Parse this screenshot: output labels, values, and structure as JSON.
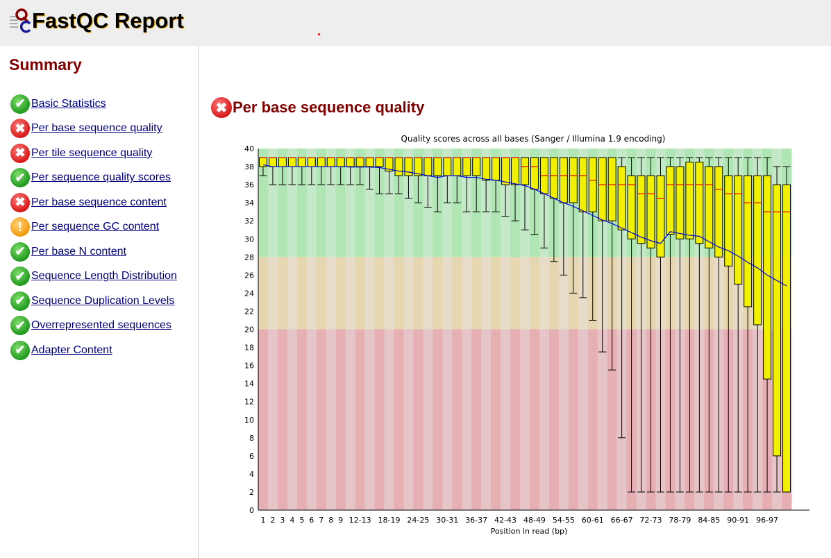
{
  "header": {
    "title": "FastQC Report",
    "logo_text": "QC"
  },
  "sidebar": {
    "title": "Summary",
    "items": [
      {
        "label": "Basic Statistics",
        "status": "pass"
      },
      {
        "label": "Per base sequence quality",
        "status": "fail"
      },
      {
        "label": "Per tile sequence quality",
        "status": "fail"
      },
      {
        "label": "Per sequence quality scores",
        "status": "pass"
      },
      {
        "label": "Per base sequence content",
        "status": "fail"
      },
      {
        "label": "Per sequence GC content",
        "status": "warn"
      },
      {
        "label": "Per base N content",
        "status": "pass"
      },
      {
        "label": "Sequence Length Distribution",
        "status": "pass"
      },
      {
        "label": "Sequence Duplication Levels",
        "status": "pass"
      },
      {
        "label": "Overrepresented sequences",
        "status": "pass"
      },
      {
        "label": "Adapter Content",
        "status": "pass"
      }
    ]
  },
  "main": {
    "title": "Per base sequence quality",
    "status": "fail"
  },
  "colors": {
    "pass": "#1f9a1f",
    "fail": "#d81818",
    "warn": "#f29a0c",
    "box": "#f0f000",
    "median": "#e00000",
    "mean": "#0000e0"
  },
  "chart_data": {
    "type": "box",
    "title": "Quality scores across all bases (Sanger / Illumina 1.9 encoding)",
    "xlabel": "Position in read (bp)",
    "ylabel": "",
    "ylim": [
      0,
      40
    ],
    "yticks": [
      0,
      2,
      4,
      6,
      8,
      10,
      12,
      14,
      16,
      18,
      20,
      22,
      24,
      26,
      28,
      30,
      32,
      34,
      36,
      38,
      40
    ],
    "zones": [
      {
        "from": 28,
        "to": 40,
        "label": "good"
      },
      {
        "from": 20,
        "to": 28,
        "label": "reasonable"
      },
      {
        "from": 0,
        "to": 20,
        "label": "poor"
      }
    ],
    "categories": [
      "1",
      "2",
      "3",
      "4",
      "5",
      "6",
      "7",
      "8",
      "9",
      "10-11",
      "12-13",
      "14-15",
      "16-17",
      "18-19",
      "20-21",
      "22-23",
      "24-25",
      "26-27",
      "28-29",
      "30-31",
      "32-33",
      "34-35",
      "36-37",
      "38-39",
      "40-41",
      "42-43",
      "44-45",
      "46-47",
      "48-49",
      "50-51",
      "52-53",
      "54-55",
      "56-57",
      "58-59",
      "60-61",
      "62-63",
      "64-65",
      "66-67",
      "68-69",
      "70-71",
      "72-73",
      "74-75",
      "76-77",
      "78-79",
      "80-81",
      "82-83",
      "84-85",
      "86-87",
      "88-89",
      "90-91",
      "92-93",
      "94-95",
      "96-97",
      "98-99",
      "100-101"
    ],
    "shown_tick_labels": [
      "1",
      "2",
      "3",
      "4",
      "5",
      "6",
      "7",
      "8",
      "9",
      "12-13",
      "18-19",
      "24-25",
      "30-31",
      "36-37",
      "42-43",
      "48-49",
      "54-55",
      "60-61",
      "66-67",
      "72-73",
      "78-79",
      "84-85",
      "90-91",
      "96-97"
    ],
    "median": [
      39,
      39,
      39,
      39,
      39,
      39,
      39,
      39,
      39,
      39,
      39,
      39,
      39,
      39,
      39,
      39,
      39,
      39,
      39,
      39,
      39,
      39,
      39,
      39,
      39,
      39,
      39,
      38,
      38,
      37,
      37,
      37,
      37,
      37,
      36.5,
      36,
      36,
      36,
      36,
      35,
      35,
      34.5,
      36,
      36,
      36,
      36,
      36,
      35.5,
      35,
      35,
      34,
      34,
      33,
      33,
      33
    ],
    "q3": [
      39,
      39,
      39,
      39,
      39,
      39,
      39,
      39,
      39,
      39,
      39,
      39,
      39,
      39,
      39,
      39,
      39,
      39,
      39,
      39,
      39,
      39,
      39,
      39,
      39,
      39,
      39,
      39,
      39,
      39,
      39,
      39,
      39,
      39,
      39,
      39,
      39,
      38,
      37,
      37,
      37,
      37,
      38,
      38,
      38.5,
      38.5,
      38,
      38,
      37,
      37,
      37,
      37,
      37,
      36,
      36
    ],
    "q1": [
      38,
      38,
      38,
      38,
      38,
      38,
      38,
      38,
      38,
      38,
      38,
      38,
      38,
      37.5,
      37,
      37,
      37,
      37,
      37,
      37,
      37,
      37,
      37,
      36.5,
      36.5,
      36,
      36,
      36,
      35.5,
      35,
      34.5,
      34,
      34,
      33,
      33,
      32,
      32,
      31,
      30,
      29.5,
      29,
      28,
      30.5,
      30,
      30,
      29.5,
      29,
      28,
      27,
      25,
      22.5,
      20.5,
      14.5,
      6,
      2
    ],
    "p10": [
      37,
      36,
      36,
      36,
      36,
      36,
      36,
      36,
      36,
      36,
      36,
      35.5,
      35,
      35,
      35,
      34.5,
      34,
      33.5,
      33,
      34,
      34,
      33,
      33,
      33,
      33,
      32.5,
      32,
      31,
      30.5,
      29,
      27.5,
      26,
      24,
      23.5,
      21,
      17.5,
      15.5,
      8,
      2,
      2,
      2,
      2,
      2,
      2,
      2,
      2,
      2,
      2,
      2,
      2,
      2,
      2,
      2,
      2,
      2
    ],
    "p90": [
      39,
      39,
      39,
      39,
      39,
      39,
      39,
      39,
      39,
      39,
      39,
      39,
      39,
      39,
      39,
      39,
      39,
      39,
      39,
      39,
      39,
      39,
      39,
      39,
      39,
      39,
      39,
      39,
      39,
      39,
      39,
      39,
      39,
      39,
      39,
      39,
      39,
      39,
      39,
      39,
      39,
      39,
      39,
      39,
      39,
      39,
      39,
      39,
      39,
      39,
      39,
      39,
      39,
      38,
      38
    ],
    "mean": [
      38.2,
      38,
      38,
      38,
      38,
      38,
      38,
      38,
      38,
      37.95,
      37.95,
      37.95,
      37.9,
      37.7,
      37.5,
      37.4,
      37.2,
      37,
      36.8,
      37,
      37,
      36.8,
      36.8,
      36.6,
      36.5,
      36.3,
      36.1,
      35.9,
      35.5,
      35,
      34.5,
      34,
      33.6,
      33.1,
      32.6,
      32.1,
      31.7,
      31.2,
      30.7,
      30.2,
      29.8,
      29.5,
      30.8,
      30.6,
      30.4,
      30.3,
      29.7,
      29.1,
      28.7,
      28.1,
      27.4,
      26.8,
      26,
      25.4,
      24.8
    ]
  }
}
